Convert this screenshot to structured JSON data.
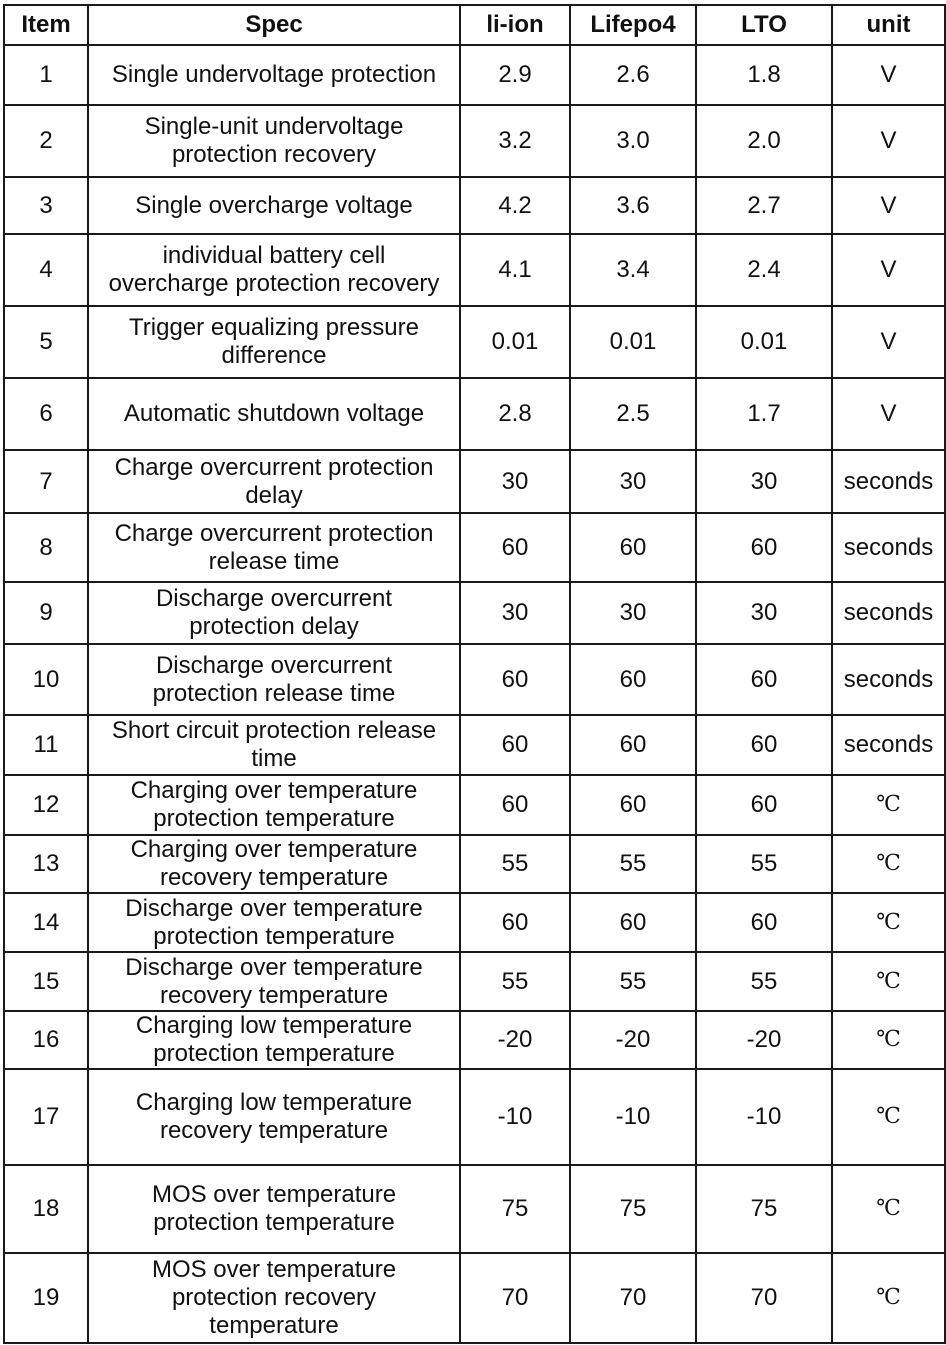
{
  "header": {
    "item": "Item",
    "spec": "Spec",
    "liion": "li-ion",
    "lifepo4": "Lifepo4",
    "lto": "LTO",
    "unit": "unit"
  },
  "rows": [
    {
      "item": "1",
      "spec_lines": [
        "Single undervoltage protection"
      ],
      "liion": "2.9",
      "lifepo4": "2.6",
      "lto": "1.8",
      "unit": "V"
    },
    {
      "item": "2",
      "spec_lines": [
        "Single-unit undervoltage",
        "protection recovery"
      ],
      "liion": "3.2",
      "lifepo4": "3.0",
      "lto": "2.0",
      "unit": "V"
    },
    {
      "item": "3",
      "spec_lines": [
        "Single overcharge voltage"
      ],
      "liion": "4.2",
      "lifepo4": "3.6",
      "lto": "2.7",
      "unit": "V"
    },
    {
      "item": "4",
      "spec_lines": [
        "individual battery cell",
        "overcharge protection recovery"
      ],
      "liion": "4.1",
      "lifepo4": "3.4",
      "lto": "2.4",
      "unit": "V"
    },
    {
      "item": "5",
      "spec_lines": [
        "Trigger equalizing pressure",
        "difference"
      ],
      "liion": "0.01",
      "lifepo4": "0.01",
      "lto": "0.01",
      "unit": "V"
    },
    {
      "item": "6",
      "spec_lines": [
        "Automatic shutdown voltage"
      ],
      "liion": "2.8",
      "lifepo4": "2.5",
      "lto": "1.7",
      "unit": "V"
    },
    {
      "item": "7",
      "spec_lines": [
        "Charge overcurrent protection",
        "delay"
      ],
      "liion": "30",
      "lifepo4": "30",
      "lto": "30",
      "unit": "seconds"
    },
    {
      "item": "8",
      "spec_lines": [
        "Charge overcurrent protection",
        "release time"
      ],
      "liion": "60",
      "lifepo4": "60",
      "lto": "60",
      "unit": "seconds"
    },
    {
      "item": "9",
      "spec_lines": [
        "Discharge overcurrent",
        "protection delay"
      ],
      "liion": "30",
      "lifepo4": "30",
      "lto": "30",
      "unit": "seconds"
    },
    {
      "item": "10",
      "spec_lines": [
        "Discharge overcurrent",
        "protection release time"
      ],
      "liion": "60",
      "lifepo4": "60",
      "lto": "60",
      "unit": "seconds"
    },
    {
      "item": "11",
      "spec_lines": [
        "Short circuit protection release",
        "time"
      ],
      "liion": "60",
      "lifepo4": "60",
      "lto": "60",
      "unit": "seconds"
    },
    {
      "item": "12",
      "spec_lines": [
        "Charging over temperature",
        "protection temperature"
      ],
      "liion": "60",
      "lifepo4": "60",
      "lto": "60",
      "unit": "℃"
    },
    {
      "item": "13",
      "spec_lines": [
        "Charging over temperature",
        "recovery temperature"
      ],
      "liion": "55",
      "lifepo4": "55",
      "lto": "55",
      "unit": "℃"
    },
    {
      "item": "14",
      "spec_lines": [
        "Discharge over temperature",
        "protection temperature"
      ],
      "liion": "60",
      "lifepo4": "60",
      "lto": "60",
      "unit": "℃"
    },
    {
      "item": "15",
      "spec_lines": [
        "Discharge over temperature",
        "recovery temperature"
      ],
      "liion": "55",
      "lifepo4": "55",
      "lto": "55",
      "unit": "℃"
    },
    {
      "item": "16",
      "spec_lines": [
        "Charging low temperature",
        "protection temperature"
      ],
      "liion": "-20",
      "lifepo4": "-20",
      "lto": "-20",
      "unit": "℃"
    },
    {
      "item": "17",
      "spec_lines": [
        "Charging low temperature",
        "recovery temperature"
      ],
      "liion": "-10",
      "lifepo4": "-10",
      "lto": "-10",
      "unit": "℃"
    },
    {
      "item": "18",
      "spec_lines": [
        "MOS over temperature",
        "protection temperature"
      ],
      "liion": "75",
      "lifepo4": "75",
      "lto": "75",
      "unit": "℃"
    },
    {
      "item": "19",
      "spec_lines": [
        "MOS over temperature",
        "protection recovery",
        "temperature"
      ],
      "liion": "70",
      "lifepo4": "70",
      "lto": "70",
      "unit": "℃"
    }
  ]
}
